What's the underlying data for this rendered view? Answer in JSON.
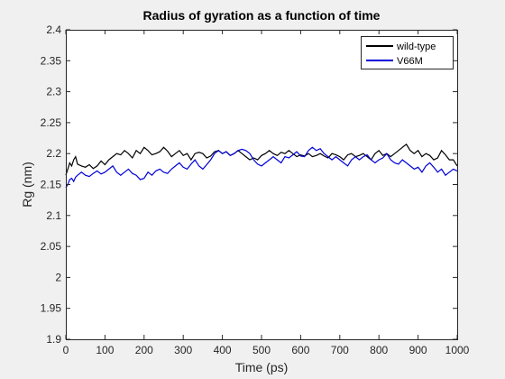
{
  "chart_data": {
    "type": "line",
    "title": "Radius of gyration as a function of time",
    "xlabel": "Time (ps)",
    "ylabel": "Rg (nm)",
    "xlim": [
      0,
      1000
    ],
    "ylim": [
      1.9,
      2.4
    ],
    "xticks": [
      0,
      100,
      200,
      300,
      400,
      500,
      600,
      700,
      800,
      900,
      1000
    ],
    "yticks": [
      1.9,
      1.95,
      2,
      2.05,
      2.1,
      2.15,
      2.2,
      2.25,
      2.3,
      2.35,
      2.4
    ],
    "xtick_labels": [
      "0",
      "100",
      "200",
      "300",
      "400",
      "500",
      "600",
      "700",
      "800",
      "900",
      "1000"
    ],
    "ytick_labels": [
      "1.9",
      "1.95",
      "2",
      "2.05",
      "2.1",
      "2.15",
      "2.2",
      "2.25",
      "2.3",
      "2.35",
      "2.4"
    ],
    "grid": false,
    "legend_position": "top-right",
    "series": [
      {
        "name": "wild-type",
        "color": "#000000",
        "x": [
          0,
          5,
          10,
          15,
          20,
          25,
          30,
          40,
          50,
          60,
          70,
          80,
          90,
          100,
          110,
          120,
          130,
          140,
          150,
          160,
          170,
          180,
          190,
          200,
          210,
          220,
          230,
          240,
          250,
          260,
          270,
          280,
          290,
          300,
          310,
          320,
          330,
          340,
          350,
          360,
          370,
          380,
          390,
          400,
          410,
          420,
          430,
          440,
          450,
          460,
          470,
          480,
          490,
          500,
          510,
          520,
          530,
          540,
          550,
          560,
          570,
          580,
          590,
          600,
          610,
          620,
          630,
          640,
          650,
          660,
          670,
          680,
          690,
          700,
          710,
          720,
          730,
          740,
          750,
          760,
          770,
          780,
          790,
          800,
          810,
          820,
          830,
          840,
          850,
          860,
          870,
          880,
          890,
          900,
          910,
          920,
          930,
          940,
          950,
          960,
          970,
          980,
          990,
          1000
        ],
        "y": [
          2.165,
          2.175,
          2.185,
          2.18,
          2.19,
          2.195,
          2.183,
          2.18,
          2.178,
          2.182,
          2.176,
          2.18,
          2.188,
          2.182,
          2.19,
          2.195,
          2.2,
          2.198,
          2.205,
          2.2,
          2.193,
          2.205,
          2.2,
          2.21,
          2.205,
          2.198,
          2.2,
          2.203,
          2.21,
          2.204,
          2.195,
          2.2,
          2.205,
          2.197,
          2.2,
          2.19,
          2.2,
          2.202,
          2.2,
          2.193,
          2.196,
          2.203,
          2.205,
          2.2,
          2.203,
          2.197,
          2.2,
          2.205,
          2.2,
          2.195,
          2.19,
          2.193,
          2.19,
          2.197,
          2.2,
          2.205,
          2.2,
          2.197,
          2.202,
          2.2,
          2.205,
          2.2,
          2.195,
          2.198,
          2.196,
          2.2,
          2.195,
          2.197,
          2.2,
          2.196,
          2.193,
          2.2,
          2.198,
          2.195,
          2.19,
          2.198,
          2.2,
          2.195,
          2.197,
          2.2,
          2.195,
          2.19,
          2.2,
          2.205,
          2.197,
          2.2,
          2.195,
          2.2,
          2.205,
          2.21,
          2.215,
          2.205,
          2.2,
          2.205,
          2.195,
          2.2,
          2.197,
          2.19,
          2.193,
          2.205,
          2.198,
          2.19,
          2.19,
          2.18
        ]
      },
      {
        "name": "V66M",
        "color": "#0000d8",
        "x": [
          0,
          5,
          10,
          15,
          20,
          25,
          30,
          40,
          50,
          60,
          70,
          80,
          90,
          100,
          110,
          120,
          130,
          140,
          150,
          160,
          170,
          180,
          190,
          200,
          210,
          220,
          230,
          240,
          250,
          260,
          270,
          280,
          290,
          300,
          310,
          320,
          330,
          340,
          350,
          360,
          370,
          380,
          390,
          400,
          410,
          420,
          430,
          440,
          450,
          460,
          470,
          480,
          490,
          500,
          510,
          520,
          530,
          540,
          550,
          560,
          570,
          580,
          590,
          600,
          610,
          620,
          630,
          640,
          650,
          660,
          670,
          680,
          690,
          700,
          710,
          720,
          730,
          740,
          750,
          760,
          770,
          780,
          790,
          800,
          810,
          820,
          830,
          840,
          850,
          860,
          870,
          880,
          890,
          900,
          910,
          920,
          930,
          940,
          950,
          960,
          970,
          980,
          990,
          1000
        ],
        "y": [
          2.145,
          2.15,
          2.158,
          2.16,
          2.155,
          2.162,
          2.165,
          2.17,
          2.165,
          2.163,
          2.168,
          2.172,
          2.167,
          2.17,
          2.175,
          2.18,
          2.17,
          2.165,
          2.17,
          2.175,
          2.168,
          2.165,
          2.158,
          2.16,
          2.17,
          2.165,
          2.172,
          2.175,
          2.17,
          2.168,
          2.175,
          2.18,
          2.185,
          2.178,
          2.175,
          2.183,
          2.19,
          2.18,
          2.175,
          2.182,
          2.19,
          2.2,
          2.205,
          2.2,
          2.203,
          2.197,
          2.2,
          2.205,
          2.207,
          2.205,
          2.2,
          2.19,
          2.183,
          2.18,
          2.185,
          2.19,
          2.195,
          2.19,
          2.185,
          2.195,
          2.193,
          2.198,
          2.203,
          2.196,
          2.195,
          2.205,
          2.21,
          2.205,
          2.208,
          2.2,
          2.195,
          2.19,
          2.195,
          2.19,
          2.185,
          2.18,
          2.19,
          2.195,
          2.19,
          2.195,
          2.198,
          2.19,
          2.185,
          2.19,
          2.193,
          2.2,
          2.19,
          2.185,
          2.183,
          2.19,
          2.185,
          2.18,
          2.175,
          2.178,
          2.17,
          2.18,
          2.185,
          2.178,
          2.17,
          2.175,
          2.165,
          2.17,
          2.175,
          2.172
        ]
      }
    ]
  }
}
